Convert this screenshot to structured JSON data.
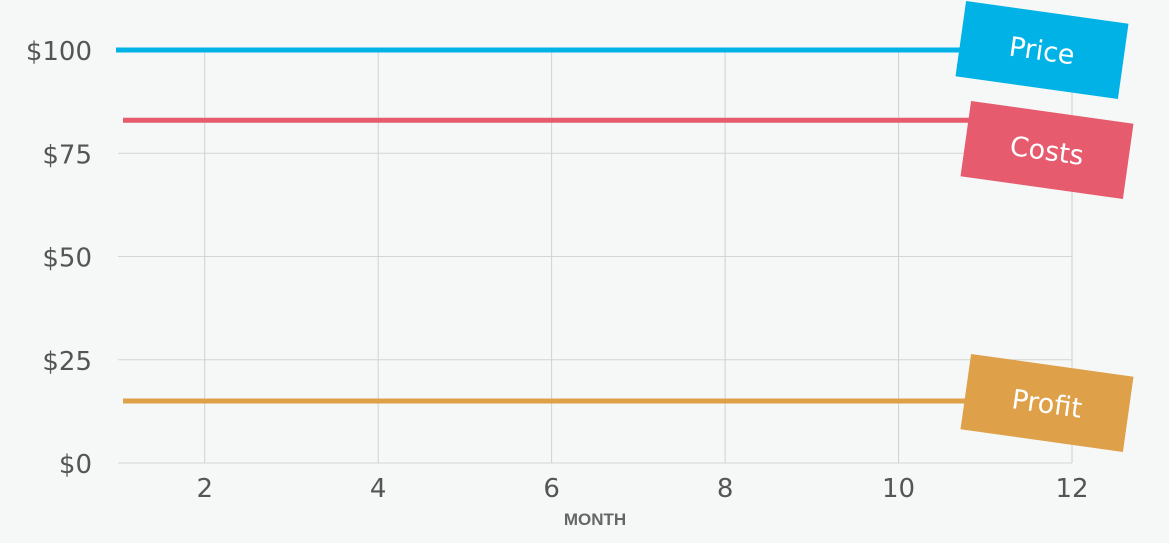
{
  "chart_data": {
    "type": "line",
    "title": "",
    "xlabel": "MONTH",
    "ylabel": "",
    "x_ticks": [
      2,
      4,
      6,
      8,
      10,
      12
    ],
    "y_ticks": [
      0,
      25,
      50,
      75,
      100
    ],
    "y_tick_labels": [
      "$0",
      "$25",
      "$50",
      "$75",
      "$100"
    ],
    "xlim": [
      1,
      12
    ],
    "ylim": [
      0,
      100
    ],
    "grid": true,
    "legend": "none (series tags on right end)",
    "series": [
      {
        "name": "Price",
        "color": "#00b2e6",
        "x": [
          1,
          12
        ],
        "values": [
          100,
          100
        ]
      },
      {
        "name": "Costs",
        "color": "#e65b6e",
        "x": [
          1,
          12
        ],
        "values": [
          83,
          83
        ]
      },
      {
        "name": "Profit",
        "color": "#dfa04a",
        "x": [
          1,
          12
        ],
        "values": [
          15,
          15
        ]
      }
    ]
  }
}
